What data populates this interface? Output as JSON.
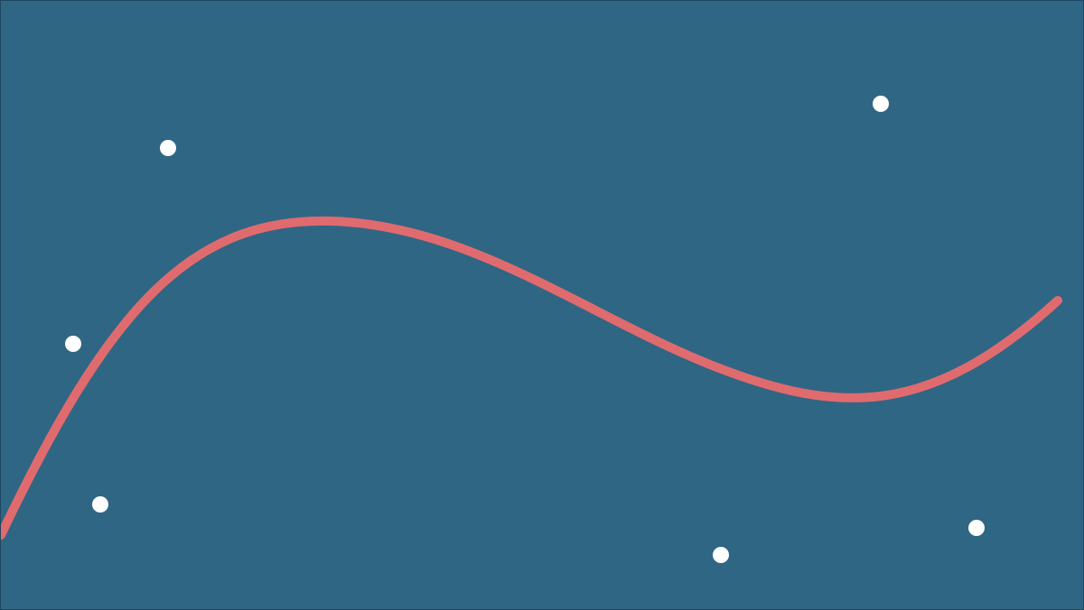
{
  "scene": {
    "background_color": "#2f6683",
    "curve_color": "#e06b6f",
    "point_color": "#ffffff",
    "point_count": 6
  }
}
